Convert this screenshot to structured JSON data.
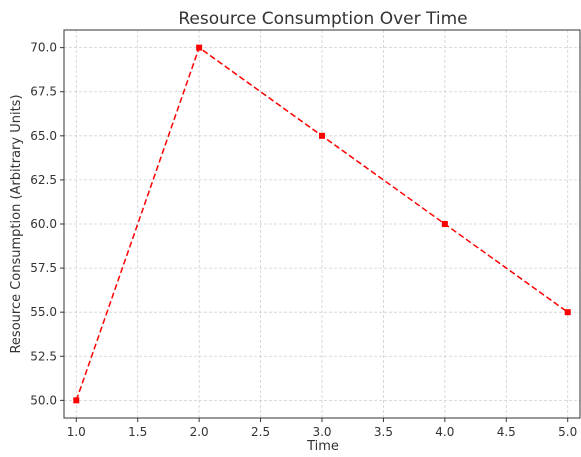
{
  "chart_data": {
    "type": "line",
    "title": "Resource Consumption Over Time",
    "xlabel": "Time",
    "ylabel": "Resource Consumption (Arbitrary Units)",
    "xlim": [
      0.9,
      5.1
    ],
    "ylim": [
      49.0,
      71.0
    ],
    "xticks": [
      1.0,
      1.5,
      2.0,
      2.5,
      3.0,
      3.5,
      4.0,
      4.5,
      5.0
    ],
    "xtick_labels": [
      "1.0",
      "1.5",
      "2.0",
      "2.5",
      "3.0",
      "3.5",
      "4.0",
      "4.5",
      "5.0"
    ],
    "yticks": [
      50.0,
      52.5,
      55.0,
      57.5,
      60.0,
      62.5,
      65.0,
      67.5,
      70.0
    ],
    "ytick_labels": [
      "50.0",
      "52.5",
      "55.0",
      "57.5",
      "60.0",
      "62.5",
      "65.0",
      "67.5",
      "70.0"
    ],
    "grid": true,
    "series": [
      {
        "x": [
          1,
          2,
          3,
          4,
          5
        ],
        "y": [
          50,
          70,
          65,
          60,
          55
        ],
        "color": "#ff0000",
        "line_style": "dashed",
        "marker": "square"
      }
    ]
  }
}
